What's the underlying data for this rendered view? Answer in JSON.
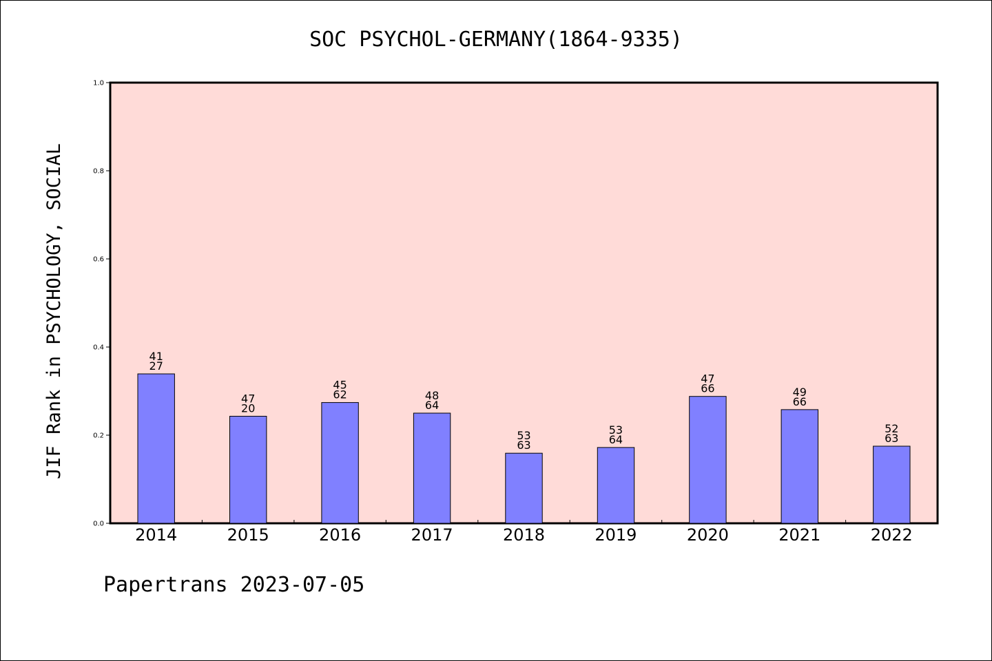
{
  "footer": "Papertrans 2023-07-05",
  "colors": {
    "plot_background": "#FFDBD8",
    "bar_fill": "#8080FF",
    "bar_stroke": "#000000"
  },
  "chart_data": {
    "type": "bar",
    "title": "SOC PSYCHOL-GERMANY(1864-9335)",
    "xlabel": "",
    "ylabel": "JIF Rank in PSYCHOLOGY, SOCIAL",
    "ylim": [
      0,
      1.0
    ],
    "yticks": [
      "0.0",
      "0.2",
      "0.4",
      "0.6",
      "0.8",
      "1.0"
    ],
    "grid": false,
    "categories": [
      "2014",
      "2015",
      "2016",
      "2017",
      "2018",
      "2019",
      "2020",
      "2021",
      "2022"
    ],
    "values": [
      0.339,
      0.243,
      0.274,
      0.25,
      0.159,
      0.172,
      0.288,
      0.258,
      0.175
    ],
    "labels_top": [
      "41",
      "47",
      "45",
      "48",
      "53",
      "53",
      "47",
      "49",
      "52"
    ],
    "labels_bottom": [
      "27",
      "20",
      "62",
      "64",
      "63",
      "64",
      "66",
      "66",
      "63"
    ]
  }
}
